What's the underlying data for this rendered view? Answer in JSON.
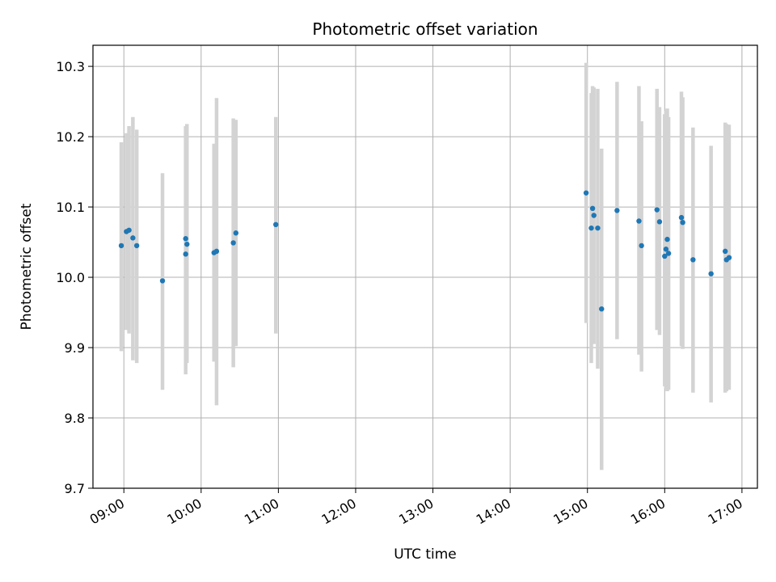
{
  "chart_data": {
    "type": "scatter",
    "title": "Photometric offset variation",
    "xlabel": "UTC time",
    "ylabel": "Photometric offset",
    "x_axis_type": "time",
    "xlim": [
      "08:36",
      "17:12"
    ],
    "ylim": [
      9.7,
      10.33
    ],
    "x_ticks": [
      "09:00",
      "10:00",
      "11:00",
      "12:00",
      "13:00",
      "14:00",
      "15:00",
      "16:00",
      "17:00"
    ],
    "y_ticks": [
      "9.7",
      "9.8",
      "9.9",
      "10.0",
      "10.1",
      "10.2",
      "10.3"
    ],
    "grid": true,
    "marker_color": "#1f77b4",
    "errorbar_color": "#d3d3d3",
    "points": [
      {
        "t": "08:58",
        "y": 10.045,
        "lo": 9.895,
        "hi": 10.192
      },
      {
        "t": "09:02",
        "y": 10.065,
        "lo": 9.925,
        "hi": 10.205
      },
      {
        "t": "09:04",
        "y": 10.067,
        "lo": 9.92,
        "hi": 10.215
      },
      {
        "t": "09:07",
        "y": 10.056,
        "lo": 9.882,
        "hi": 10.228
      },
      {
        "t": "09:10",
        "y": 10.045,
        "lo": 9.878,
        "hi": 10.21
      },
      {
        "t": "09:30",
        "y": 9.995,
        "lo": 9.84,
        "hi": 10.148
      },
      {
        "t": "09:48",
        "y": 10.055,
        "lo": 9.9,
        "hi": 10.215
      },
      {
        "t": "09:48",
        "y": 10.033,
        "lo": 9.862,
        "hi": 10.212
      },
      {
        "t": "09:49",
        "y": 10.047,
        "lo": 9.878,
        "hi": 10.218
      },
      {
        "t": "10:10",
        "y": 10.035,
        "lo": 9.88,
        "hi": 10.19
      },
      {
        "t": "10:12",
        "y": 10.037,
        "lo": 9.818,
        "hi": 10.255
      },
      {
        "t": "10:25",
        "y": 10.049,
        "lo": 9.872,
        "hi": 10.226
      },
      {
        "t": "10:27",
        "y": 10.063,
        "lo": 9.902,
        "hi": 10.224
      },
      {
        "t": "10:58",
        "y": 10.075,
        "lo": 9.92,
        "hi": 10.228
      },
      {
        "t": "14:59",
        "y": 10.12,
        "lo": 9.935,
        "hi": 10.305
      },
      {
        "t": "15:03",
        "y": 10.07,
        "lo": 9.878,
        "hi": 10.262
      },
      {
        "t": "15:04",
        "y": 10.098,
        "lo": 9.922,
        "hi": 10.272
      },
      {
        "t": "15:05",
        "y": 10.088,
        "lo": 9.905,
        "hi": 10.27
      },
      {
        "t": "15:08",
        "y": 10.07,
        "lo": 9.87,
        "hi": 10.268
      },
      {
        "t": "15:11",
        "y": 9.955,
        "lo": 9.726,
        "hi": 10.183
      },
      {
        "t": "15:23",
        "y": 10.095,
        "lo": 9.912,
        "hi": 10.278
      },
      {
        "t": "15:40",
        "y": 10.08,
        "lo": 9.89,
        "hi": 10.272
      },
      {
        "t": "15:42",
        "y": 10.045,
        "lo": 9.866,
        "hi": 10.222
      },
      {
        "t": "15:54",
        "y": 10.096,
        "lo": 9.925,
        "hi": 10.268
      },
      {
        "t": "15:56",
        "y": 10.079,
        "lo": 9.918,
        "hi": 10.242
      },
      {
        "t": "16:00",
        "y": 10.03,
        "lo": 9.845,
        "hi": 10.232
      },
      {
        "t": "16:01",
        "y": 10.04,
        "lo": 9.842,
        "hi": 10.237
      },
      {
        "t": "16:02",
        "y": 10.054,
        "lo": 9.838,
        "hi": 10.24
      },
      {
        "t": "16:03",
        "y": 10.034,
        "lo": 9.84,
        "hi": 10.228
      },
      {
        "t": "16:13",
        "y": 10.085,
        "lo": 9.902,
        "hi": 10.264
      },
      {
        "t": "16:14",
        "y": 10.078,
        "lo": 9.898,
        "hi": 10.256
      },
      {
        "t": "16:22",
        "y": 10.025,
        "lo": 9.836,
        "hi": 10.213
      },
      {
        "t": "16:36",
        "y": 10.005,
        "lo": 9.822,
        "hi": 10.187
      },
      {
        "t": "16:47",
        "y": 10.037,
        "lo": 9.836,
        "hi": 10.22
      },
      {
        "t": "16:48",
        "y": 10.025,
        "lo": 9.838,
        "hi": 10.218
      },
      {
        "t": "16:50",
        "y": 10.028,
        "lo": 9.84,
        "hi": 10.217
      }
    ]
  }
}
